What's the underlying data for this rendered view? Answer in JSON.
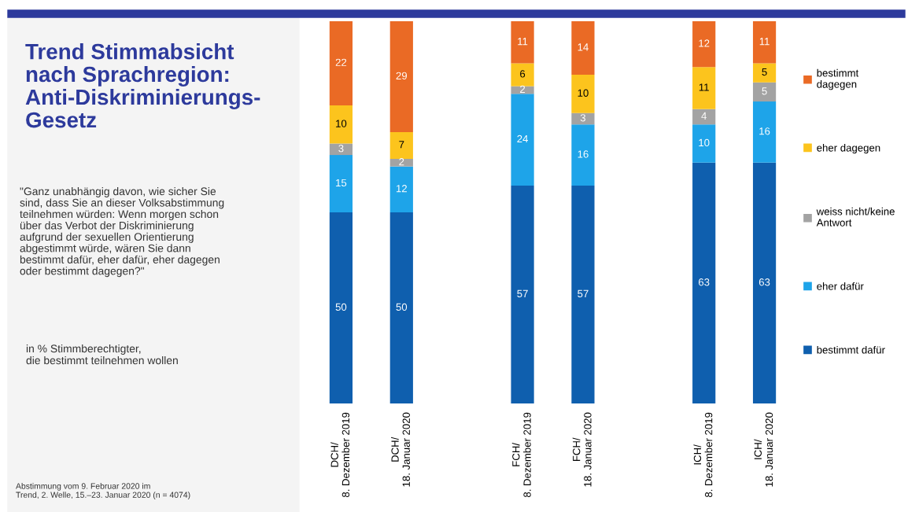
{
  "chart_data": {
    "type": "bar",
    "stacked": true,
    "title": "Trend Stimmabsicht\nnach Sprachregion:\nAnti-Diskriminierungs-\nGesetz",
    "subtitle": "\"Ganz unabhängig davon, wie sicher Sie\nsind, dass Sie an dieser Volksabstimmung\nteilnehmen würden: Wenn morgen schon\nüber das Verbot der Diskriminierung\naufgrund der sexuellen Orientierung\nabgestimmt würde, wären Sie dann\nbestimmt dafür, eher dafür, eher dagegen\noder bestimmt dagegen?\"",
    "annotations": [
      "in % Stimmberechtigter,\ndie bestimmt teilnehmen wollen",
      "Abstimmung vom 9. Februar 2020 im\nTrend, 2. Welle, 15.–23. Januar 2020 (n = 4074)"
    ],
    "categories": [
      "DCH/\n8. Dezember 2019",
      "DCH/\n18. Januar 2020",
      null,
      "FCH/\n8. Dezember 2019",
      "FCH/\n18. Januar 2020",
      null,
      "ICH/\n8. Dezember 2019",
      "ICH/\n18. Januar 2020"
    ],
    "series": [
      {
        "name": "bestimmt dafür",
        "color": "#0f5fae",
        "values": [
          50,
          50,
          null,
          57,
          57,
          null,
          63,
          63
        ]
      },
      {
        "name": "eher dafür",
        "color": "#1ea4e9",
        "values": [
          15,
          12,
          null,
          24,
          16,
          null,
          10,
          16
        ]
      },
      {
        "name": "weiss nicht/keine\nAntwort",
        "color": "#a3a3a3",
        "values": [
          3,
          2,
          null,
          2,
          3,
          null,
          4,
          5
        ]
      },
      {
        "name": "eher dagegen",
        "color": "#fcc41d",
        "values": [
          10,
          7,
          null,
          6,
          10,
          null,
          11,
          5
        ]
      },
      {
        "name": "bestimmt\ndagegen",
        "color": "#ea6a25",
        "values": [
          22,
          29,
          null,
          11,
          14,
          null,
          12,
          11
        ]
      }
    ],
    "ylim": [
      0,
      100
    ],
    "tick_labels": "x",
    "data_labels": true,
    "legend": "right",
    "grid": false
  }
}
